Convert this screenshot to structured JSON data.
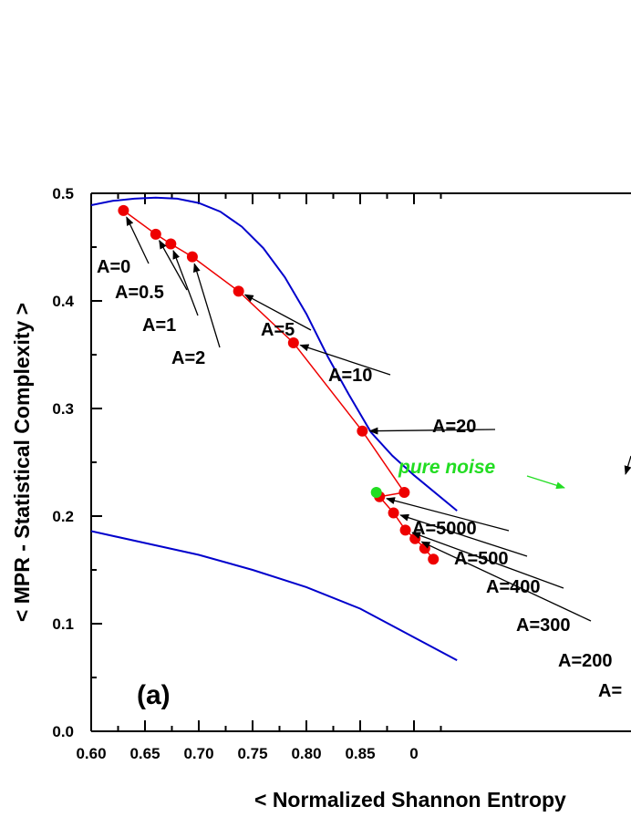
{
  "chart_data": {
    "type": "scatter",
    "title": "",
    "xlabel": "< Normalized  Shannon  Entropy",
    "ylabel": "< MPR - Statistical  Complexity >",
    "xlim": [
      0.6,
      0.94
    ],
    "ylim": [
      0.0,
      0.5
    ],
    "x_ticks": [
      "0.60",
      "0.65",
      "0.70",
      "0.75",
      "0.80",
      "0.85",
      "0"
    ],
    "y_ticks": [
      "0.0",
      "0.1",
      "0.2",
      "0.3",
      "0.4",
      "0.5"
    ],
    "grid": false,
    "panel_label": "(a)",
    "colors": {
      "series": "#ee0000",
      "bounds": "#0000cc",
      "noise": "#22dd22",
      "annotation": "#000000"
    },
    "series": [
      {
        "points": [
          {
            "label": "A=0",
            "x": 0.63,
            "y": 0.484
          },
          {
            "label": "A=0.5",
            "x": 0.66,
            "y": 0.462
          },
          {
            "label": "A=1",
            "x": 0.674,
            "y": 0.453
          },
          {
            "label": "A=2",
            "x": 0.694,
            "y": 0.441
          },
          {
            "label": "A=5",
            "x": 0.737,
            "y": 0.409
          },
          {
            "label": "A=10",
            "x": 0.788,
            "y": 0.361
          },
          {
            "label": "A=20",
            "x": 0.852,
            "y": 0.279
          },
          {
            "label": "",
            "x": 0.891,
            "y": 0.222
          },
          {
            "label": "A=5000",
            "x": 0.868,
            "y": 0.218
          },
          {
            "label": "A=500",
            "x": 0.881,
            "y": 0.203
          },
          {
            "label": "A=400",
            "x": 0.892,
            "y": 0.187
          },
          {
            "label": "A=300",
            "x": 0.901,
            "y": 0.179
          },
          {
            "label": "A=200",
            "x": 0.91,
            "y": 0.17
          },
          {
            "label": "A=",
            "x": 0.918,
            "y": 0.16
          }
        ]
      }
    ],
    "noise_point": {
      "label": "pure noise",
      "x": 0.865,
      "y": 0.222
    },
    "bounds": [
      {
        "points": [
          [
            0.6,
            0.489
          ],
          [
            0.62,
            0.493
          ],
          [
            0.64,
            0.495
          ],
          [
            0.66,
            0.496
          ],
          [
            0.68,
            0.495
          ],
          [
            0.7,
            0.491
          ],
          [
            0.72,
            0.483
          ],
          [
            0.74,
            0.469
          ],
          [
            0.76,
            0.449
          ],
          [
            0.78,
            0.422
          ],
          [
            0.8,
            0.388
          ],
          [
            0.82,
            0.348
          ],
          [
            0.84,
            0.312
          ],
          [
            0.86,
            0.278
          ],
          [
            0.88,
            0.256
          ],
          [
            0.9,
            0.238
          ],
          [
            0.94,
            0.205
          ]
        ]
      },
      {
        "points": [
          [
            0.6,
            0.186
          ],
          [
            0.65,
            0.175
          ],
          [
            0.7,
            0.164
          ],
          [
            0.75,
            0.15
          ],
          [
            0.8,
            0.134
          ],
          [
            0.85,
            0.114
          ],
          [
            0.88,
            0.098
          ],
          [
            0.91,
            0.082
          ],
          [
            0.94,
            0.066
          ]
        ]
      }
    ]
  }
}
